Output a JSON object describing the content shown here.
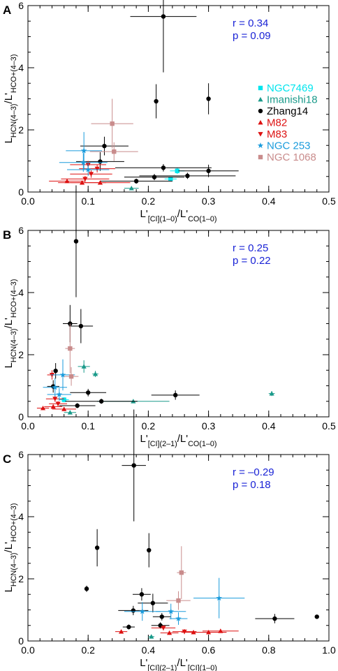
{
  "chart_data": [
    {
      "panel_letter": "A",
      "type": "scatter",
      "xlabel": "L'[CI](1–0)/L'CO(1–0)",
      "ylabel": "LHCN(4–3)/L'HCO+(4–3)",
      "xlim": [
        0,
        0.5
      ],
      "ylim": [
        0,
        6
      ],
      "xticks": [
        "0.0",
        "0.1",
        "0.2",
        "0.3",
        "0.4",
        "0.5"
      ],
      "yticks": [
        "0",
        "2",
        "4",
        "6"
      ],
      "stats": [
        "r = 0.34",
        "p = 0.09"
      ],
      "legend_position": "right",
      "series": [
        {
          "name": "NGC7469",
          "color": "#00e5ee",
          "marker": "square",
          "points": [
            {
              "x": 0.248,
              "y": 0.68,
              "xerr": 0.012,
              "yerr": 0.1
            },
            {
              "x": 0.237,
              "y": 0.42,
              "xerr": 0.01,
              "yerr": 0.06
            }
          ]
        },
        {
          "name": "Imanishi18",
          "color": "#1a9a8a",
          "marker": "triangle-up",
          "points": [
            {
              "x": 0.172,
              "y": 0.12,
              "xerr": 0.012,
              "yerr": 0.05
            }
          ]
        },
        {
          "name": "Zhang14",
          "color": "#000000",
          "marker": "circle",
          "points": [
            {
              "x": 0.225,
              "y": 5.65,
              "xerr": 0.055,
              "yerr": 1.8
            },
            {
              "x": 0.213,
              "y": 2.92,
              "xerr": 0.0,
              "yerr": 0.55
            },
            {
              "x": 0.3,
              "y": 3.0,
              "xerr": 0.0,
              "yerr": 0.5
            },
            {
              "x": 0.127,
              "y": 1.48,
              "xerr": 0.04,
              "yerr": 0.3
            },
            {
              "x": 0.12,
              "y": 0.98,
              "xerr": 0.04,
              "yerr": 0.3
            },
            {
              "x": 0.225,
              "y": 0.78,
              "xerr": 0.08,
              "yerr": 0.12
            },
            {
              "x": 0.3,
              "y": 0.68,
              "xerr": 0.05,
              "yerr": 0.2
            },
            {
              "x": 0.265,
              "y": 0.52,
              "xerr": 0.08,
              "yerr": 0.1
            },
            {
              "x": 0.21,
              "y": 0.48,
              "xerr": 0.05,
              "yerr": 0.1
            },
            {
              "x": 0.18,
              "y": 0.35,
              "xerr": 0.06,
              "yerr": 0.08
            }
          ]
        },
        {
          "name": "M82",
          "color": "#dd1111",
          "marker": "triangle-up",
          "points": [
            {
              "x": 0.065,
              "y": 0.35,
              "xerr": 0.03,
              "yerr": 0.06
            },
            {
              "x": 0.09,
              "y": 0.3,
              "xerr": 0.04,
              "yerr": 0.06
            },
            {
              "x": 0.12,
              "y": 0.3,
              "xerr": 0.05,
              "yerr": 0.06
            }
          ]
        },
        {
          "name": "M83",
          "color": "#dd1111",
          "marker": "triangle-down",
          "points": [
            {
              "x": 0.095,
              "y": 0.42,
              "xerr": 0.04,
              "yerr": 0.1
            },
            {
              "x": 0.105,
              "y": 0.58,
              "xerr": 0.035,
              "yerr": 0.12
            },
            {
              "x": 0.115,
              "y": 0.75,
              "xerr": 0.03,
              "yerr": 0.12
            },
            {
              "x": 0.1,
              "y": 0.88,
              "xerr": 0.03,
              "yerr": 0.12
            }
          ]
        },
        {
          "name": "NGC 253",
          "color": "#1a9bdc",
          "marker": "star",
          "points": [
            {
              "x": 0.093,
              "y": 1.33,
              "xerr": 0.03,
              "yerr": 0.6
            },
            {
              "x": 0.092,
              "y": 0.95,
              "xerr": 0.04,
              "yerr": 0.3
            },
            {
              "x": 0.1,
              "y": 0.72,
              "xerr": 0.035,
              "yerr": 0.2
            }
          ]
        },
        {
          "name": "NGC 1068",
          "color": "#c98c8c",
          "marker": "square",
          "points": [
            {
              "x": 0.14,
              "y": 2.2,
              "xerr": 0.035,
              "yerr": 0.8
            },
            {
              "x": 0.143,
              "y": 1.3,
              "xerr": 0.04,
              "yerr": 0.3
            }
          ]
        }
      ]
    },
    {
      "panel_letter": "B",
      "type": "scatter",
      "xlabel": "L'[CI](2–1)/L'CO(1–0)",
      "ylabel": "LHCN(4–3)/L'HCO+(4–3)",
      "xlim": [
        0,
        0.5
      ],
      "ylim": [
        0,
        6
      ],
      "xticks": [
        "0.0",
        "0.1",
        "0.2",
        "0.3",
        "0.4",
        "0.5"
      ],
      "yticks": [
        "0",
        "2",
        "4",
        "6"
      ],
      "stats": [
        "r = 0.25",
        "p = 0.22"
      ],
      "series": [
        {
          "name": "NGC7469",
          "color": "#00e5ee",
          "marker": "square",
          "points": [
            {
              "x": 0.06,
              "y": 0.55,
              "xerr": 0.008,
              "yerr": 0.08
            }
          ]
        },
        {
          "name": "Imanishi18",
          "color": "#1a9a8a",
          "marker": "triangle-up",
          "points": [
            {
              "x": 0.093,
              "y": 1.62,
              "xerr": 0.01,
              "yerr": 0.2
            },
            {
              "x": 0.112,
              "y": 1.38,
              "xerr": 0.005,
              "yerr": 0.1
            },
            {
              "x": 0.175,
              "y": 0.5,
              "xerr": 0.06,
              "yerr": 0.06
            },
            {
              "x": 0.405,
              "y": 0.75,
              "xerr": 0.005,
              "yerr": 0.08
            },
            {
              "x": 0.07,
              "y": 0.14,
              "xerr": 0.01,
              "yerr": 0.04
            }
          ]
        },
        {
          "name": "Zhang14",
          "color": "#000000",
          "marker": "circle",
          "points": [
            {
              "x": 0.08,
              "y": 5.65,
              "xerr": 0.0,
              "yerr": 1.8
            },
            {
              "x": 0.07,
              "y": 3.0,
              "xerr": 0.012,
              "yerr": 0.6
            },
            {
              "x": 0.088,
              "y": 2.92,
              "xerr": 0.02,
              "yerr": 0.55
            },
            {
              "x": 0.046,
              "y": 1.48,
              "xerr": 0.0,
              "yerr": 0.25
            },
            {
              "x": 0.042,
              "y": 0.98,
              "xerr": 0.01,
              "yerr": 0.2
            },
            {
              "x": 0.1,
              "y": 0.78,
              "xerr": 0.03,
              "yerr": 0.12
            },
            {
              "x": 0.245,
              "y": 0.7,
              "xerr": 0.04,
              "yerr": 0.15
            },
            {
              "x": 0.122,
              "y": 0.5,
              "xerr": 0.06,
              "yerr": 0.08
            },
            {
              "x": 0.082,
              "y": 0.36,
              "xerr": 0.03,
              "yerr": 0.08
            }
          ]
        },
        {
          "name": "M82",
          "color": "#dd1111",
          "marker": "triangle-up",
          "points": [
            {
              "x": 0.025,
              "y": 0.28,
              "xerr": 0.01,
              "yerr": 0.06
            },
            {
              "x": 0.042,
              "y": 0.33,
              "xerr": 0.015,
              "yerr": 0.06
            },
            {
              "x": 0.06,
              "y": 0.25,
              "xerr": 0.02,
              "yerr": 0.06
            }
          ]
        },
        {
          "name": "M83",
          "color": "#dd1111",
          "marker": "triangle-down",
          "points": [
            {
              "x": 0.04,
              "y": 1.35,
              "xerr": 0.008,
              "yerr": 0.15
            },
            {
              "x": 0.045,
              "y": 0.58,
              "xerr": 0.015,
              "yerr": 0.1
            },
            {
              "x": 0.05,
              "y": 0.42,
              "xerr": 0.015,
              "yerr": 0.08
            }
          ]
        },
        {
          "name": "NGC 253",
          "color": "#1a9bdc",
          "marker": "star",
          "points": [
            {
              "x": 0.058,
              "y": 1.35,
              "xerr": 0.02,
              "yerr": 0.5
            },
            {
              "x": 0.045,
              "y": 0.95,
              "xerr": 0.02,
              "yerr": 0.3
            },
            {
              "x": 0.052,
              "y": 0.72,
              "xerr": 0.02,
              "yerr": 0.2
            }
          ]
        },
        {
          "name": "NGC 1068",
          "color": "#c98c8c",
          "marker": "square",
          "points": [
            {
              "x": 0.07,
              "y": 2.2,
              "xerr": 0.008,
              "yerr": 0.8
            },
            {
              "x": 0.072,
              "y": 1.3,
              "xerr": 0.012,
              "yerr": 0.3
            }
          ]
        }
      ]
    },
    {
      "panel_letter": "C",
      "type": "scatter",
      "xlabel": "L'[CI](2–1)/L'[CI](1–0)",
      "ylabel": "LHCN(4–3)/L'HCO+(4–3)",
      "xlim": [
        0,
        1.0
      ],
      "ylim": [
        0,
        6
      ],
      "xticks": [
        "0.0",
        "0.2",
        "0.4",
        "0.6",
        "0.8",
        "1.0"
      ],
      "yticks": [
        "0",
        "2",
        "4",
        "6"
      ],
      "stats": [
        "r = –0.29",
        "p = 0.18"
      ],
      "series": [
        {
          "name": "NGC7469",
          "color": "#00e5ee",
          "marker": "square",
          "points": []
        },
        {
          "name": "Imanishi18",
          "color": "#1a9a8a",
          "marker": "triangle-up",
          "points": [
            {
              "x": 0.41,
              "y": 0.14,
              "xerr": 0.01,
              "yerr": 0.04
            }
          ]
        },
        {
          "name": "Zhang14",
          "color": "#000000",
          "marker": "circle",
          "points": [
            {
              "x": 0.352,
              "y": 5.65,
              "xerr": 0.04,
              "yerr": 1.8
            },
            {
              "x": 0.23,
              "y": 3.0,
              "xerr": 0.0,
              "yerr": 0.6
            },
            {
              "x": 0.402,
              "y": 2.92,
              "xerr": 0.0,
              "yerr": 0.55
            },
            {
              "x": 0.195,
              "y": 1.68,
              "xerr": 0.0,
              "yerr": 0.1
            },
            {
              "x": 0.378,
              "y": 1.5,
              "xerr": 0.03,
              "yerr": 0.2
            },
            {
              "x": 0.35,
              "y": 0.98,
              "xerr": 0.05,
              "yerr": 0.15
            },
            {
              "x": 0.415,
              "y": 1.22,
              "xerr": 0.05,
              "yerr": 0.3
            },
            {
              "x": 0.82,
              "y": 0.72,
              "xerr": 0.065,
              "yerr": 0.15
            },
            {
              "x": 0.96,
              "y": 0.78,
              "xerr": 0.0,
              "yerr": 0.0
            },
            {
              "x": 0.445,
              "y": 0.78,
              "xerr": 0.03,
              "yerr": 0.12
            },
            {
              "x": 0.44,
              "y": 0.5,
              "xerr": 0.03,
              "yerr": 0.1
            },
            {
              "x": 0.335,
              "y": 0.45,
              "xerr": 0.02,
              "yerr": 0.08
            }
          ]
        },
        {
          "name": "M82",
          "color": "#dd1111",
          "marker": "triangle-up",
          "points": [
            {
              "x": 0.31,
              "y": 0.3,
              "xerr": 0.02,
              "yerr": 0.06
            },
            {
              "x": 0.47,
              "y": 0.26,
              "xerr": 0.03,
              "yerr": 0.06
            },
            {
              "x": 0.55,
              "y": 0.28,
              "xerr": 0.04,
              "yerr": 0.06
            },
            {
              "x": 0.6,
              "y": 0.28,
              "xerr": 0.06,
              "yerr": 0.06
            },
            {
              "x": 0.64,
              "y": 0.32,
              "xerr": 0.06,
              "yerr": 0.06
            }
          ]
        },
        {
          "name": "M83",
          "color": "#dd1111",
          "marker": "triangle-down",
          "points": [
            {
              "x": 0.45,
              "y": 0.42,
              "xerr": 0.04,
              "yerr": 0.08
            },
            {
              "x": 0.52,
              "y": 0.3,
              "xerr": 0.04,
              "yerr": 0.08
            }
          ]
        },
        {
          "name": "NGC 253",
          "color": "#1a9bdc",
          "marker": "star",
          "points": [
            {
              "x": 0.635,
              "y": 1.38,
              "xerr": 0.085,
              "yerr": 0.65
            },
            {
              "x": 0.38,
              "y": 0.95,
              "xerr": 0.06,
              "yerr": 0.3
            },
            {
              "x": 0.475,
              "y": 0.95,
              "xerr": 0.05,
              "yerr": 0.25
            },
            {
              "x": 0.5,
              "y": 0.72,
              "xerr": 0.03,
              "yerr": 0.2
            }
          ]
        },
        {
          "name": "NGC 1068",
          "color": "#c98c8c",
          "marker": "square",
          "points": [
            {
              "x": 0.51,
              "y": 2.2,
              "xerr": 0.015,
              "yerr": 0.85
            },
            {
              "x": 0.5,
              "y": 1.3,
              "xerr": 0.04,
              "yerr": 0.3
            }
          ]
        }
      ]
    }
  ]
}
